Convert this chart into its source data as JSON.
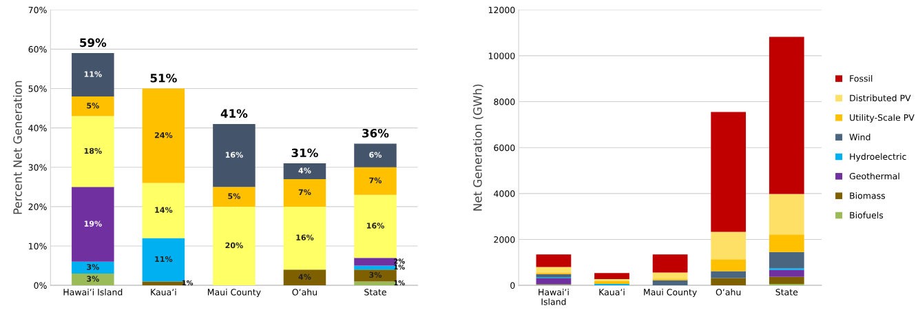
{
  "chart_data": [
    {
      "type": "bar",
      "stacked": true,
      "ylabel": "Percent Net Generation",
      "categories": [
        "Hawai‘i Island",
        "Kaua‘i",
        "Maui County",
        "O‘ahu",
        "State"
      ],
      "ylim": [
        0,
        70
      ],
      "yticks": [
        {
          "value": 0,
          "label": "0%"
        },
        {
          "value": 10,
          "label": "10%"
        },
        {
          "value": 20,
          "label": "20%"
        },
        {
          "value": 30,
          "label": "30%"
        },
        {
          "value": 40,
          "label": "40%"
        },
        {
          "value": 50,
          "label": "50%"
        },
        {
          "value": 60,
          "label": "60%"
        },
        {
          "value": 70,
          "label": "70%"
        }
      ],
      "grid": "y",
      "legend": false,
      "series": [
        {
          "color": "#9bbb59",
          "values": [
            3,
            null,
            null,
            null,
            1
          ],
          "value_labels": [
            "3%",
            null,
            null,
            null,
            "1%"
          ]
        },
        {
          "color": "#7f6000",
          "values": [
            null,
            1,
            null,
            4,
            3
          ],
          "value_labels": [
            null,
            "1%",
            null,
            "4%",
            "3%"
          ]
        },
        {
          "color": "#00b0f0",
          "values": [
            3,
            11,
            null,
            null,
            1
          ],
          "value_labels": [
            "3%",
            "11%",
            null,
            null,
            "1%"
          ]
        },
        {
          "color": "#7030a0",
          "values": [
            19,
            null,
            null,
            null,
            2
          ],
          "value_labels": [
            "19%",
            null,
            null,
            null,
            "2%"
          ]
        },
        {
          "color": "#ffff66",
          "values": [
            18,
            14,
            20,
            16,
            16
          ],
          "value_labels": [
            "18%",
            "14%",
            "20%",
            "16%",
            "16%"
          ]
        },
        {
          "color": "#ffc000",
          "values": [
            5,
            24,
            5,
            7,
            7
          ],
          "value_labels": [
            "5%",
            "24%",
            "5%",
            "7%",
            "7%"
          ]
        },
        {
          "color": "#44546a",
          "values": [
            11,
            null,
            16,
            4,
            6
          ],
          "value_labels": [
            "11%",
            null,
            "16%",
            "4%",
            "6%"
          ]
        }
      ],
      "totals": [
        "59%",
        "51%",
        "41%",
        "31%",
        "36%"
      ]
    },
    {
      "type": "bar",
      "stacked": true,
      "ylabel": "Net Generation (GWh)",
      "categories": [
        "Hawai‘i\nIsland",
        "Kaua‘i",
        "Maui County",
        "O‘ahu",
        "State"
      ],
      "ylim": [
        0,
        12000
      ],
      "yticks": [
        0,
        2000,
        4000,
        6000,
        8000,
        10000,
        12000
      ],
      "grid": "y",
      "legend": "right",
      "series": [
        {
          "name": "Biofuels",
          "color": "#9bbb59",
          "values": [
            40,
            null,
            null,
            null,
            60
          ]
        },
        {
          "name": "Biomass",
          "color": "#7f6000",
          "values": [
            null,
            null,
            null,
            320,
            310
          ]
        },
        {
          "name": "Geothermal",
          "color": "#7030a0",
          "values": [
            260,
            null,
            null,
            null,
            300
          ]
        },
        {
          "name": "Hydroelectric",
          "color": "#00b0f0",
          "values": [
            40,
            60,
            null,
            null,
            80
          ]
        },
        {
          "name": "Wind",
          "color": "#4a6580",
          "values": [
            150,
            null,
            220,
            300,
            700
          ]
        },
        {
          "name": "Utility-Scale PV",
          "color": "#ffc000",
          "values": [
            70,
            130,
            70,
            520,
            770
          ]
        },
        {
          "name": "Distributed PV",
          "color": "#ffe066",
          "values": [
            240,
            80,
            270,
            1190,
            1760
          ]
        },
        {
          "name": "Fossil",
          "color": "#c00000",
          "values": [
            550,
            270,
            790,
            5220,
            6840
          ]
        }
      ]
    }
  ]
}
